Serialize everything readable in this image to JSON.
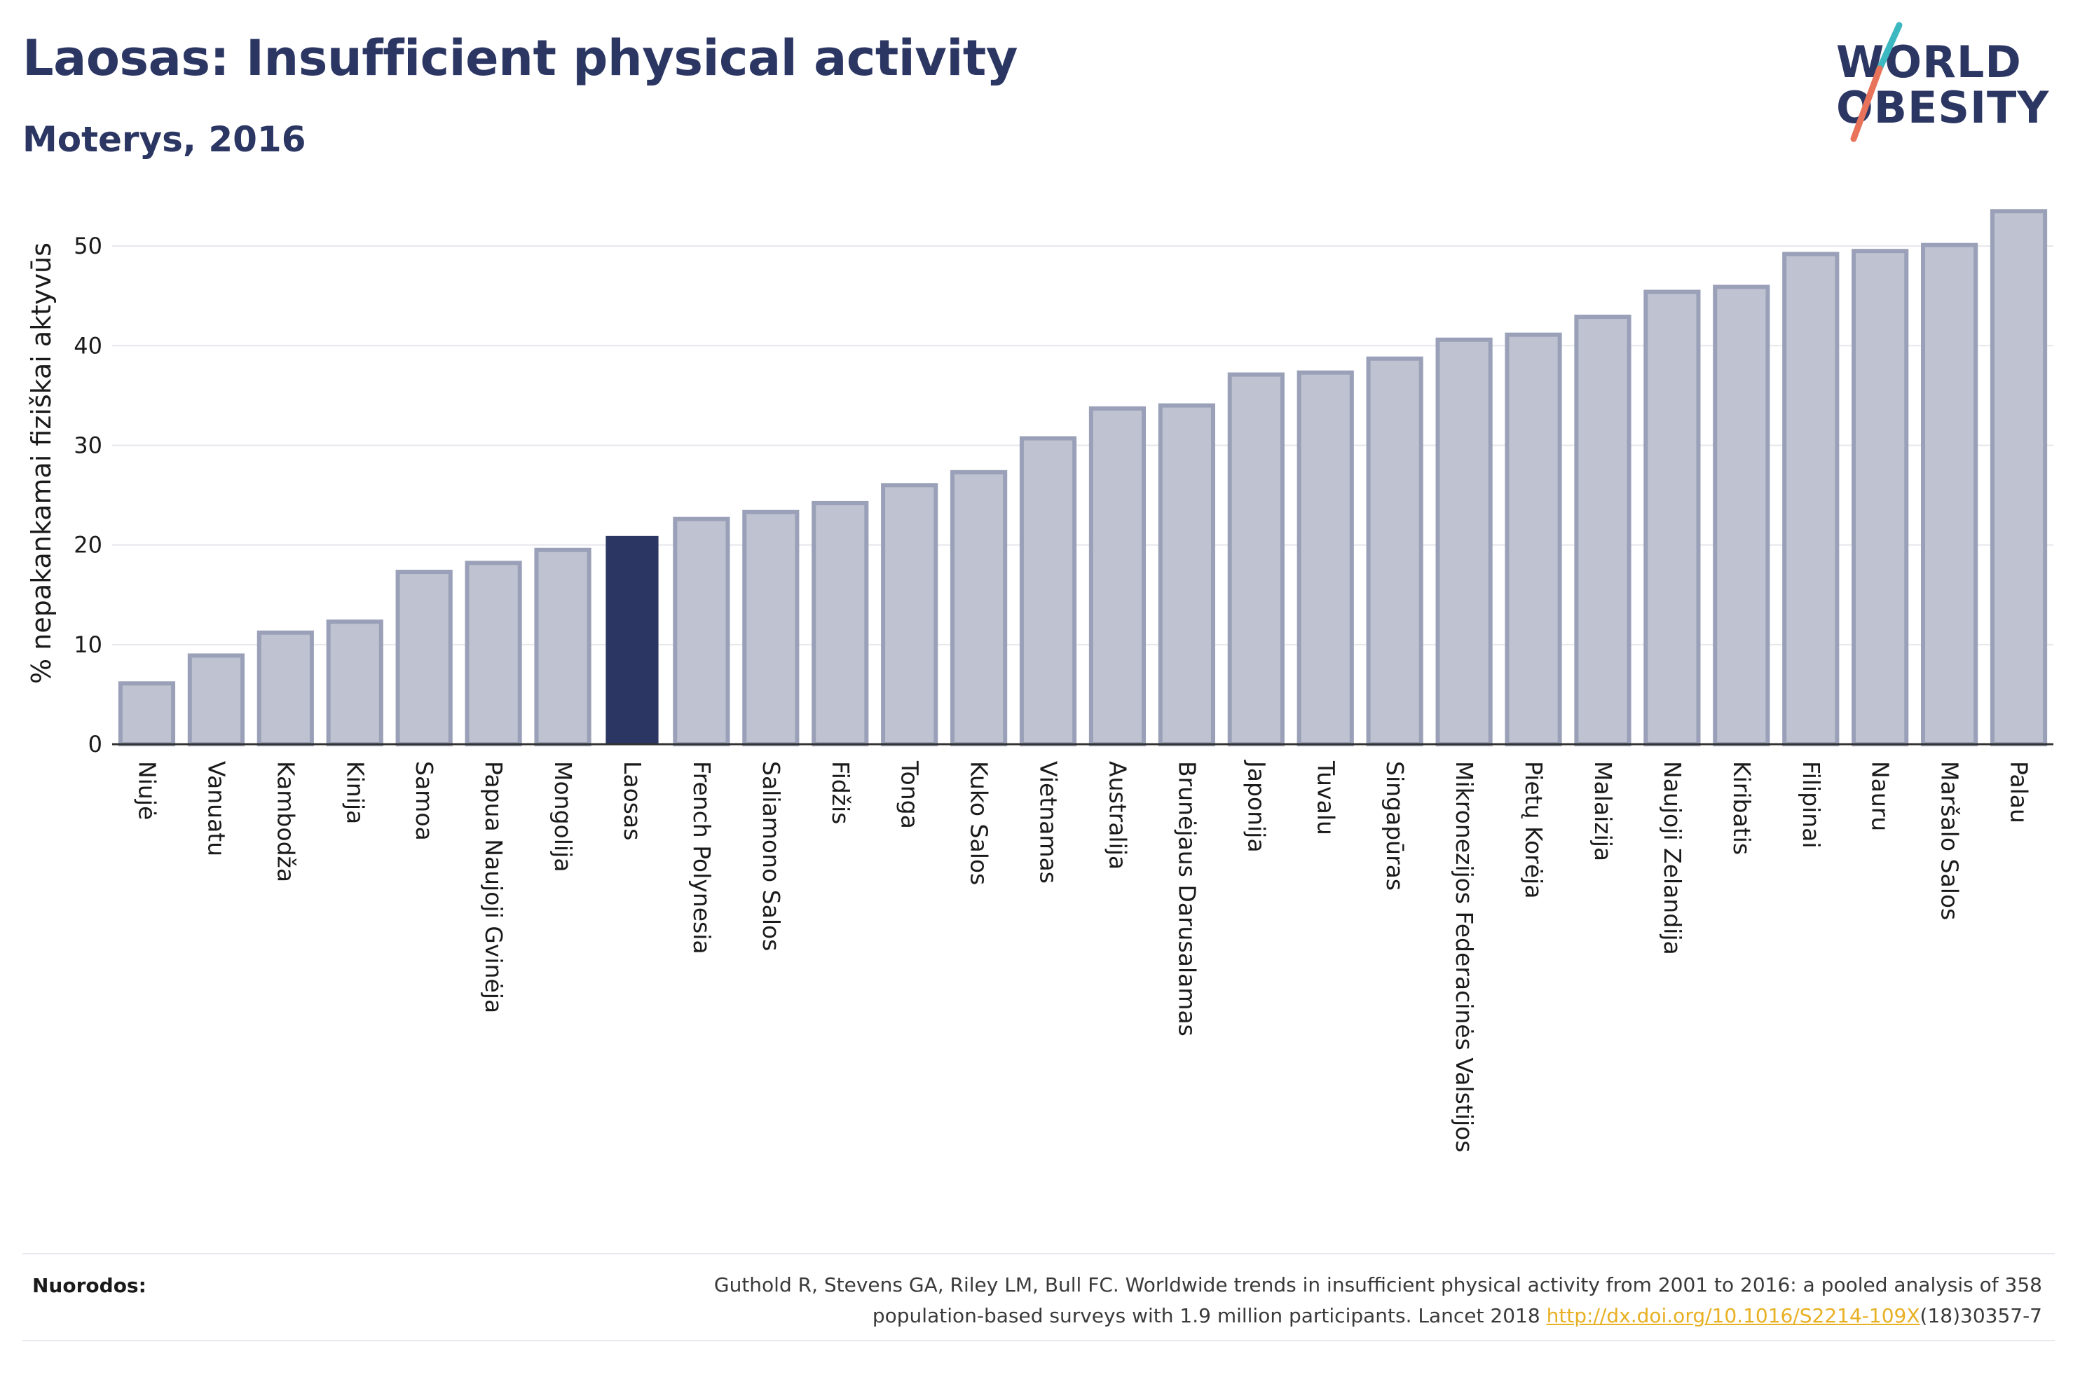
{
  "header": {
    "title": "Laosas: Insufficient physical activity",
    "subtitle": "Moterys, 2016"
  },
  "logo": {
    "line1": "WORLD",
    "line2": "OBESITY",
    "text_color": "#2b3663",
    "slash_colors": [
      "#3bb8c0",
      "#e8735a"
    ]
  },
  "colors": {
    "bar": "#bfc2d0",
    "bar_border": "#9aa0b8",
    "highlight": "#2b3663"
  },
  "chart_data": {
    "type": "bar",
    "title": "Laosas: Insufficient physical activity",
    "subtitle": "Moterys, 2016",
    "xlabel": "",
    "ylabel": "% nepakankamai fiziškai aktyvūs",
    "ylim": [
      0,
      55
    ],
    "yticks": [
      0,
      10,
      20,
      30,
      40,
      50
    ],
    "grid": true,
    "highlight": "Laosas",
    "categories": [
      "Niujė",
      "Vanuatu",
      "Kambodža",
      "Kinija",
      "Samoa",
      "Papua Naujoji Gvinėja",
      "Mongolija",
      "Laosas",
      "French Polynesia",
      "Saliamono Salos",
      "Fidžis",
      "Tonga",
      "Kuko Salos",
      "Vietnamas",
      "Australija",
      "Brunėjaus Darusalamas",
      "Japonija",
      "Tuvalu",
      "Singapūras",
      "Mikronezijos Federacinės Valstijos",
      "Pietų Korėja",
      "Malaizija",
      "Naujoji Zelandija",
      "Kiribatis",
      "Filipinai",
      "Nauru",
      "Maršalo Salos",
      "Palau"
    ],
    "values": [
      6.1,
      8.9,
      11.2,
      12.3,
      17.3,
      18.2,
      19.5,
      20.9,
      22.6,
      23.3,
      24.2,
      26.0,
      27.3,
      30.7,
      33.7,
      34.0,
      37.1,
      37.3,
      38.7,
      40.6,
      41.1,
      42.9,
      45.4,
      45.9,
      49.2,
      49.5,
      50.1,
      53.5
    ]
  },
  "footer": {
    "label": "Nuorodos:",
    "ref_line1": "Guthold R, Stevens GA, Riley LM, Bull FC. Worldwide trends in insufficient physical activity from 2001 to 2016: a pooled analysis of 358",
    "ref_line2_pre": "population-based surveys with 1.9 million participants. Lancet 2018 ",
    "ref_link": "http://dx.doi.org/10.1016/S2214-109X",
    "ref_line2_post": "(18)30357-7"
  }
}
